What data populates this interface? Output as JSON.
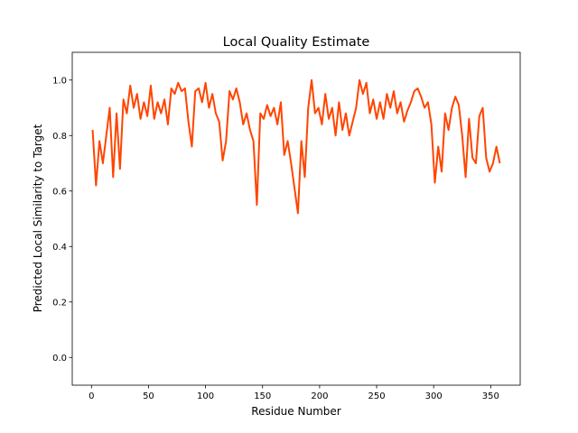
{
  "chart_data": {
    "type": "line",
    "title": "Local Quality Estimate",
    "xlabel": "Residue Number",
    "ylabel": "Predicted Local Similarity to Target",
    "x": [
      1,
      4,
      7,
      10,
      13,
      16,
      19,
      22,
      25,
      28,
      31,
      34,
      37,
      40,
      43,
      46,
      49,
      52,
      55,
      58,
      61,
      64,
      67,
      70,
      73,
      76,
      79,
      82,
      85,
      88,
      91,
      94,
      97,
      100,
      103,
      106,
      109,
      112,
      115,
      118,
      121,
      124,
      127,
      130,
      133,
      136,
      139,
      142,
      145,
      148,
      151,
      154,
      157,
      160,
      163,
      166,
      169,
      172,
      175,
      178,
      181,
      184,
      187,
      190,
      193,
      196,
      199,
      202,
      205,
      208,
      211,
      214,
      217,
      220,
      223,
      226,
      229,
      232,
      235,
      238,
      241,
      244,
      247,
      250,
      253,
      256,
      259,
      262,
      265,
      268,
      271,
      274,
      277,
      280,
      283,
      286,
      289,
      292,
      295,
      298,
      301,
      304,
      307,
      310,
      313,
      316,
      319,
      322,
      325,
      328,
      331,
      334,
      337,
      340,
      343,
      346,
      349,
      352,
      355,
      358
    ],
    "series": [
      {
        "name": "Local Quality Estimate",
        "color": "#ff4500",
        "values": [
          0.82,
          0.62,
          0.78,
          0.7,
          0.8,
          0.9,
          0.65,
          0.88,
          0.68,
          0.93,
          0.88,
          0.98,
          0.9,
          0.95,
          0.86,
          0.92,
          0.87,
          0.98,
          0.86,
          0.92,
          0.88,
          0.93,
          0.84,
          0.97,
          0.95,
          0.99,
          0.96,
          0.97,
          0.85,
          0.76,
          0.96,
          0.97,
          0.92,
          0.99,
          0.9,
          0.95,
          0.88,
          0.85,
          0.71,
          0.78,
          0.96,
          0.93,
          0.97,
          0.92,
          0.84,
          0.88,
          0.82,
          0.78,
          0.55,
          0.88,
          0.86,
          0.91,
          0.87,
          0.9,
          0.84,
          0.92,
          0.73,
          0.78,
          0.7,
          0.61,
          0.52,
          0.78,
          0.65,
          0.9,
          1.0,
          0.88,
          0.9,
          0.84,
          0.95,
          0.86,
          0.9,
          0.8,
          0.92,
          0.82,
          0.88,
          0.8,
          0.85,
          0.9,
          1.0,
          0.95,
          0.99,
          0.88,
          0.93,
          0.86,
          0.92,
          0.86,
          0.95,
          0.9,
          0.96,
          0.88,
          0.92,
          0.85,
          0.89,
          0.92,
          0.96,
          0.97,
          0.94,
          0.9,
          0.92,
          0.84,
          0.63,
          0.76,
          0.67,
          0.88,
          0.82,
          0.9,
          0.94,
          0.91,
          0.8,
          0.65,
          0.86,
          0.72,
          0.7,
          0.87,
          0.9,
          0.72,
          0.67,
          0.7,
          0.76,
          0.7
        ]
      }
    ],
    "xlim": [
      -16.85,
      375.85
    ],
    "xticks": [
      0,
      50,
      100,
      150,
      200,
      250,
      300,
      350
    ],
    "ylim": [
      -0.1,
      1.1
    ],
    "yticks": [
      {
        "value": 0,
        "label": "0.0"
      },
      0.2,
      0.4,
      0.6,
      0.8,
      {
        "value": 1,
        "label": "1.0"
      }
    ],
    "grid": false
  }
}
